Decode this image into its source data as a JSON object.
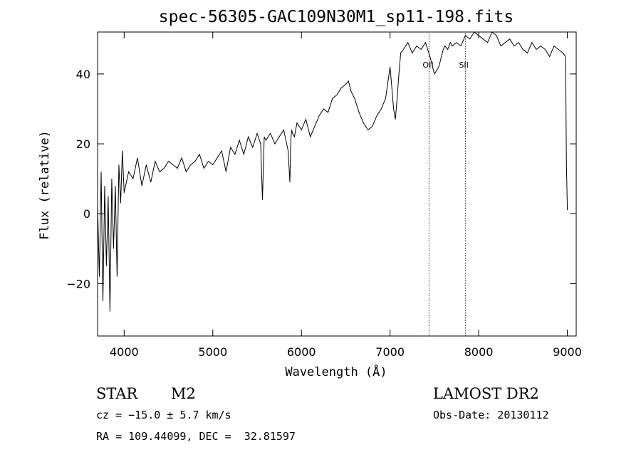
{
  "chart_data": {
    "type": "line",
    "title": "spec-56305-GAC109N30M1_sp11-198.fits",
    "xlabel": "Wavelength (Å)",
    "ylabel": "Flux (relative)",
    "xlim": [
      3700,
      9100
    ],
    "ylim": [
      -35,
      52
    ],
    "xticks": [
      4000,
      5000,
      6000,
      7000,
      8000,
      9000
    ],
    "yticks": [
      -20,
      0,
      20,
      40
    ],
    "grid": false,
    "line_color": "#000000",
    "marker_color": "#a00000",
    "series": [
      {
        "x": [
          3700,
          3720,
          3740,
          3760,
          3780,
          3800,
          3820,
          3840,
          3860,
          3880,
          3900,
          3920,
          3940,
          3960,
          3980,
          4000,
          4050,
          4100,
          4150,
          4200,
          4250,
          4300,
          4350,
          4400,
          4450,
          4500,
          4550,
          4600,
          4650,
          4700,
          4750,
          4800,
          4850,
          4900,
          4950,
          5000,
          5050,
          5100,
          5150,
          5200,
          5250,
          5300,
          5350,
          5400,
          5450,
          5500,
          5540,
          5560,
          5580,
          5600,
          5650,
          5700,
          5750,
          5800,
          5850,
          5870,
          5880,
          5890,
          5900,
          5920,
          5950,
          6000,
          6050,
          6100,
          6150,
          6200,
          6250,
          6300,
          6350,
          6400,
          6450,
          6500,
          6530,
          6560,
          6600,
          6650,
          6700,
          6750,
          6800,
          6850,
          6900,
          6950,
          7000,
          7020,
          7040,
          7060,
          7080,
          7100,
          7120,
          7150,
          7200,
          7250,
          7300,
          7350,
          7400,
          7450,
          7500,
          7550,
          7600,
          7620,
          7650,
          7680,
          7700,
          7750,
          7800,
          7850,
          7900,
          7950,
          8000,
          8050,
          8100,
          8150,
          8200,
          8250,
          8300,
          8350,
          8400,
          8450,
          8500,
          8550,
          8600,
          8650,
          8700,
          8750,
          8800,
          8850,
          8900,
          8950,
          8980,
          8990,
          9000
        ],
        "y": [
          2,
          -18,
          12,
          -25,
          8,
          -15,
          5,
          -28,
          10,
          -10,
          8,
          -18,
          14,
          3,
          18,
          6,
          12,
          10,
          16,
          8,
          14,
          9,
          15,
          12,
          13,
          15,
          14,
          13,
          16,
          12,
          14,
          15,
          17,
          13,
          15,
          14,
          16,
          18,
          12,
          19,
          17,
          21,
          17,
          22,
          19,
          23,
          20,
          4,
          22,
          21,
          23,
          20,
          22,
          24,
          18,
          9,
          21,
          24,
          23,
          22,
          26,
          24,
          27,
          22,
          25,
          28,
          30,
          29,
          33,
          34,
          36,
          37,
          38,
          35,
          33,
          29,
          26,
          24,
          25,
          28,
          30,
          33,
          42,
          36,
          30,
          27,
          33,
          40,
          46,
          47,
          49,
          46,
          48,
          47,
          49,
          45,
          40,
          42,
          47,
          48,
          47,
          49,
          48,
          49,
          48,
          51,
          50,
          52,
          51,
          50,
          49,
          52,
          51,
          48,
          49,
          50,
          48,
          49,
          47,
          46,
          49,
          47,
          48,
          47,
          45,
          48,
          47,
          46,
          45,
          14,
          1
        ]
      }
    ],
    "annotations": [
      {
        "label": "OII",
        "x": 7440
      },
      {
        "label": "SII",
        "x": 7850
      }
    ]
  },
  "info": {
    "object_class": "STAR",
    "subclass": "M2",
    "cz": "cz = −15.0 ± 5.7 km/s",
    "coords": "RA = 109.44099, DEC =  32.81597",
    "survey": "LAMOST DR2",
    "obs_date": "Obs-Date: 20130112"
  }
}
